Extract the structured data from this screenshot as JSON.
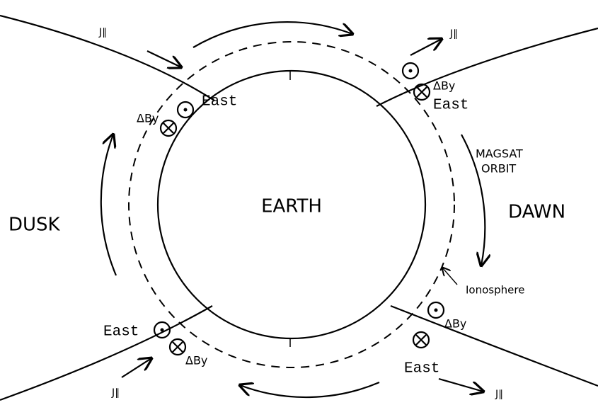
{
  "center_label": "EARTH",
  "regions": {
    "dusk": "DUSK",
    "dawn": "DAWN"
  },
  "orbit_label": [
    "MAGSAT",
    "ORBIT"
  ],
  "ionosphere_label": "Ionosphere",
  "annotations": [
    {
      "east": "East",
      "delta_b": "ΔBy",
      "current": "J∥"
    },
    {
      "east": "East",
      "delta_b": "ΔBy",
      "current": "J∥"
    },
    {
      "east": "East",
      "delta_b": "ΔBy",
      "current": "J∥"
    },
    {
      "east": "East",
      "delta_b": "ΔBy",
      "current": "J∥"
    }
  ]
}
